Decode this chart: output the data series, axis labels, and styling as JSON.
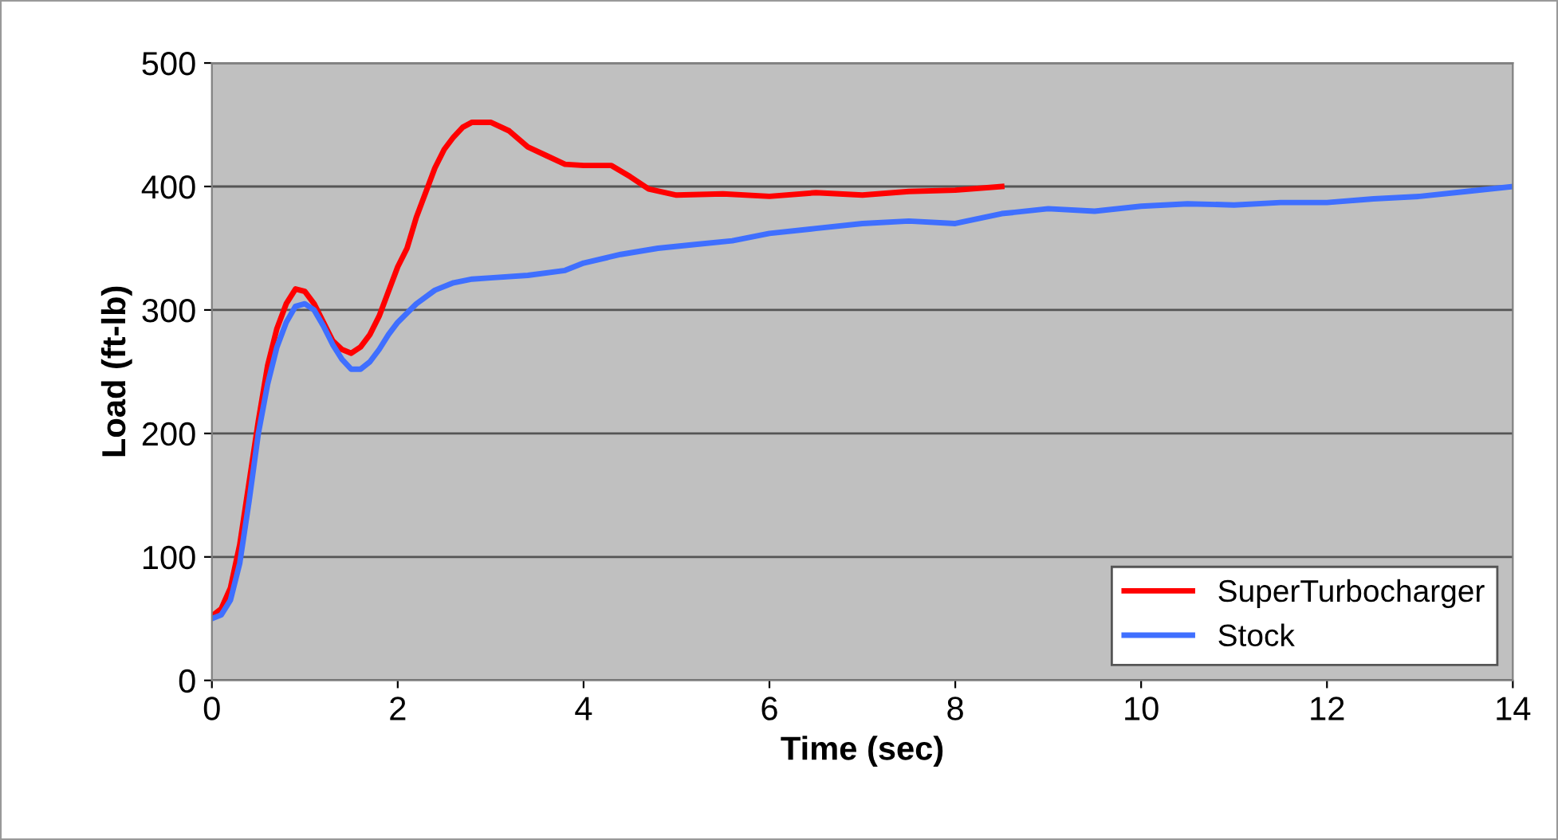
{
  "chart_data": {
    "type": "line",
    "xlabel": "Time (sec)",
    "ylabel": "Load (ft-lb)",
    "xlim": [
      0,
      14
    ],
    "xticks": [
      0,
      2,
      4,
      6,
      8,
      10,
      12,
      14
    ],
    "ylim": [
      0,
      500
    ],
    "yticks": [
      0,
      100,
      200,
      300,
      400,
      500
    ],
    "grid": "y",
    "legend": "bottom right",
    "marker": "none",
    "line_style": "solid",
    "series": [
      {
        "name": "SuperTurbocharger",
        "color": "#ff0000",
        "x": [
          0,
          0.1,
          0.2,
          0.3,
          0.4,
          0.5,
          0.6,
          0.7,
          0.8,
          0.9,
          1.0,
          1.1,
          1.2,
          1.3,
          1.4,
          1.5,
          1.6,
          1.7,
          1.8,
          1.9,
          2.0,
          2.1,
          2.2,
          2.3,
          2.4,
          2.5,
          2.6,
          2.7,
          2.8,
          3.0,
          3.2,
          3.4,
          3.6,
          3.8,
          4.0,
          4.3,
          4.5,
          4.7,
          5.0,
          5.5,
          6.0,
          6.5,
          7.0,
          7.5,
          8.0,
          8.5
        ],
        "values": [
          52,
          58,
          75,
          110,
          160,
          210,
          255,
          285,
          305,
          317,
          315,
          305,
          290,
          275,
          268,
          265,
          270,
          280,
          295,
          315,
          335,
          350,
          375,
          395,
          415,
          430,
          440,
          448,
          452,
          452,
          445,
          432,
          425,
          418,
          417,
          417,
          408,
          398,
          393,
          394,
          392,
          395,
          393,
          396,
          397,
          400
        ]
      },
      {
        "name": "Stock",
        "color": "#3f6fff",
        "x": [
          0,
          0.1,
          0.2,
          0.3,
          0.4,
          0.5,
          0.6,
          0.7,
          0.8,
          0.9,
          1.0,
          1.1,
          1.2,
          1.3,
          1.4,
          1.5,
          1.6,
          1.7,
          1.8,
          1.9,
          2.0,
          2.2,
          2.4,
          2.6,
          2.8,
          3.0,
          3.4,
          3.8,
          4.0,
          4.4,
          4.8,
          5.2,
          5.6,
          6.0,
          6.5,
          7.0,
          7.5,
          8.0,
          8.5,
          9.0,
          9.5,
          10.0,
          10.5,
          11.0,
          11.5,
          12.0,
          12.5,
          13.0,
          13.5,
          14.0
        ],
        "values": [
          50,
          53,
          65,
          95,
          145,
          200,
          240,
          270,
          290,
          303,
          305,
          300,
          287,
          272,
          260,
          252,
          252,
          258,
          268,
          280,
          290,
          305,
          316,
          322,
          325,
          326,
          328,
          332,
          338,
          345,
          350,
          353,
          356,
          362,
          366,
          370,
          372,
          370,
          378,
          382,
          380,
          384,
          386,
          385,
          387,
          387,
          390,
          392,
          396,
          400
        ]
      }
    ]
  }
}
